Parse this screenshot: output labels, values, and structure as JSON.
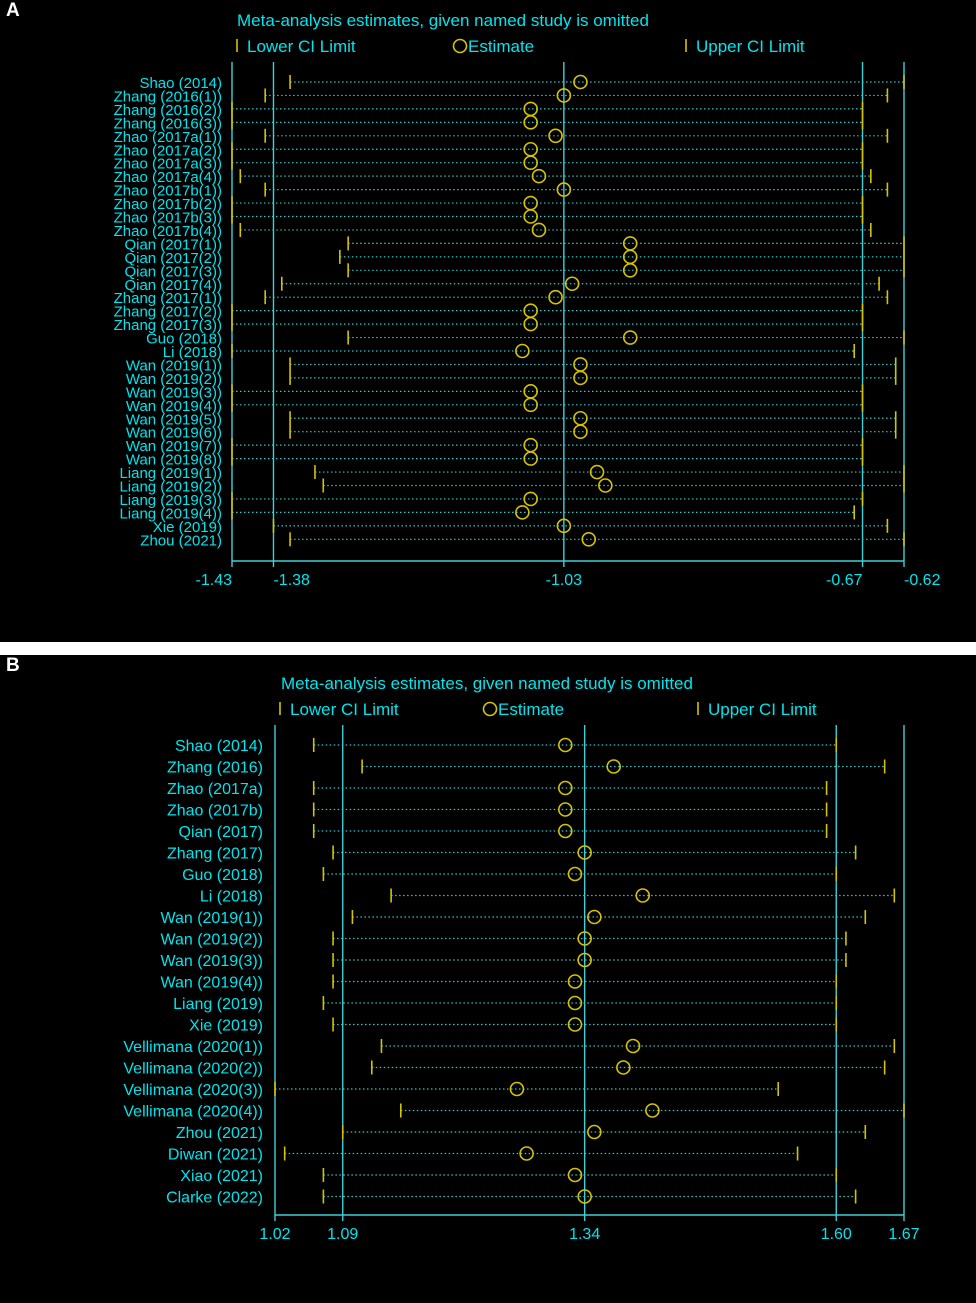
{
  "colors": {
    "background": "#000000",
    "text": "#00e5ee",
    "axis": "#3fd0d8",
    "marker": "#d4c400",
    "dots": "#30c8c8"
  },
  "chart_data": [
    {
      "type": "forest-sensitivity",
      "panel_label": "A",
      "title": "Meta-analysis estimates, given named study is omitted",
      "legend": [
        "Lower CI Limit",
        "Estimate",
        "Upper CI Limit"
      ],
      "xticks": [
        -1.43,
        -1.38,
        -1.03,
        -0.67,
        -0.62
      ],
      "xtick_labels": [
        "-1.43",
        "-1.38",
        "-1.03",
        "-0.67",
        "-0.62"
      ],
      "xlim": [
        -1.43,
        -0.62
      ],
      "vlines": [
        -1.43,
        -1.38,
        -1.03,
        -0.67,
        -0.62
      ],
      "studies": [
        {
          "name": "Shao (2014)",
          "lower": -1.36,
          "est": -1.01,
          "upper": -0.62
        },
        {
          "name": "Zhang (2016(1))",
          "lower": -1.39,
          "est": -1.03,
          "upper": -0.64
        },
        {
          "name": "Zhang (2016(2))",
          "lower": -1.43,
          "est": -1.07,
          "upper": -0.67
        },
        {
          "name": "Zhang (2016(3))",
          "lower": -1.43,
          "est": -1.07,
          "upper": -0.67
        },
        {
          "name": "Zhao (2017a(1))",
          "lower": -1.39,
          "est": -1.04,
          "upper": -0.64
        },
        {
          "name": "Zhao (2017a(2))",
          "lower": -1.43,
          "est": -1.07,
          "upper": -0.67
        },
        {
          "name": "Zhao (2017a(3))",
          "lower": -1.43,
          "est": -1.07,
          "upper": -0.67
        },
        {
          "name": "Zhao (2017a(4))",
          "lower": -1.42,
          "est": -1.06,
          "upper": -0.66
        },
        {
          "name": "Zhao (2017b(1))",
          "lower": -1.39,
          "est": -1.03,
          "upper": -0.64
        },
        {
          "name": "Zhao (2017b(2))",
          "lower": -1.43,
          "est": -1.07,
          "upper": -0.67
        },
        {
          "name": "Zhao (2017b(3))",
          "lower": -1.43,
          "est": -1.07,
          "upper": -0.67
        },
        {
          "name": "Zhao (2017b(4))",
          "lower": -1.42,
          "est": -1.06,
          "upper": -0.66
        },
        {
          "name": "Qian (2017(1))",
          "lower": -1.29,
          "est": -0.95,
          "upper": -0.62
        },
        {
          "name": "Qian (2017(2))",
          "lower": -1.3,
          "est": -0.95,
          "upper": -0.62
        },
        {
          "name": "Qian (2017(3))",
          "lower": -1.29,
          "est": -0.95,
          "upper": -0.62
        },
        {
          "name": "Qian (2017(4))",
          "lower": -1.37,
          "est": -1.02,
          "upper": -0.65
        },
        {
          "name": "Zhang (2017(1))",
          "lower": -1.39,
          "est": -1.04,
          "upper": -0.64
        },
        {
          "name": "Zhang (2017(2))",
          "lower": -1.43,
          "est": -1.07,
          "upper": -0.67
        },
        {
          "name": "Zhang (2017(3))",
          "lower": -1.43,
          "est": -1.07,
          "upper": -0.67
        },
        {
          "name": "Guo (2018)",
          "lower": -1.29,
          "est": -0.95,
          "upper": -0.62
        },
        {
          "name": "Li (2018)",
          "lower": -1.43,
          "est": -1.08,
          "upper": -0.68
        },
        {
          "name": "Wan (2019(1))",
          "lower": -1.36,
          "est": -1.01,
          "upper": -0.63
        },
        {
          "name": "Wan (2019(2))",
          "lower": -1.36,
          "est": -1.01,
          "upper": -0.63
        },
        {
          "name": "Wan (2019(3))",
          "lower": -1.43,
          "est": -1.07,
          "upper": -0.67
        },
        {
          "name": "Wan (2019(4))",
          "lower": -1.43,
          "est": -1.07,
          "upper": -0.67
        },
        {
          "name": "Wan (2019(5))",
          "lower": -1.36,
          "est": -1.01,
          "upper": -0.63
        },
        {
          "name": "Wan (2019(6))",
          "lower": -1.36,
          "est": -1.01,
          "upper": -0.63
        },
        {
          "name": "Wan (2019(7))",
          "lower": -1.43,
          "est": -1.07,
          "upper": -0.67
        },
        {
          "name": "Wan (2019(8))",
          "lower": -1.43,
          "est": -1.07,
          "upper": -0.67
        },
        {
          "name": "Liang (2019(1))",
          "lower": -1.33,
          "est": -0.99,
          "upper": -0.62
        },
        {
          "name": "Liang (2019(2))",
          "lower": -1.32,
          "est": -0.98,
          "upper": -0.62
        },
        {
          "name": "Liang (2019(3))",
          "lower": -1.43,
          "est": -1.07,
          "upper": -0.67
        },
        {
          "name": "Liang (2019(4))",
          "lower": -1.43,
          "est": -1.08,
          "upper": -0.68
        },
        {
          "name": "Xie (2019)",
          "lower": -1.38,
          "est": -1.03,
          "upper": -0.64
        },
        {
          "name": "Zhou (2021)",
          "lower": -1.36,
          "est": -1.0,
          "upper": -0.62
        }
      ]
    },
    {
      "type": "forest-sensitivity",
      "panel_label": "B",
      "title": "Meta-analysis estimates, given named study is omitted",
      "legend": [
        "Lower CI Limit",
        "Estimate",
        "Upper CI Limit"
      ],
      "xticks": [
        1.02,
        1.09,
        1.34,
        1.6,
        1.67
      ],
      "xtick_labels": [
        "1.02",
        "1.09",
        "1.34",
        "1.60",
        "1.67"
      ],
      "xlim": [
        1.02,
        1.67
      ],
      "vlines": [
        1.02,
        1.09,
        1.34,
        1.6,
        1.67
      ],
      "studies": [
        {
          "name": "Shao (2014)",
          "lower": 1.06,
          "est": 1.32,
          "upper": 1.6
        },
        {
          "name": "Zhang (2016)",
          "lower": 1.11,
          "est": 1.37,
          "upper": 1.65
        },
        {
          "name": "Zhao (2017a)",
          "lower": 1.06,
          "est": 1.32,
          "upper": 1.59
        },
        {
          "name": "Zhao (2017b)",
          "lower": 1.06,
          "est": 1.32,
          "upper": 1.59
        },
        {
          "name": "Qian (2017)",
          "lower": 1.06,
          "est": 1.32,
          "upper": 1.59
        },
        {
          "name": "Zhang (2017)",
          "lower": 1.08,
          "est": 1.34,
          "upper": 1.62
        },
        {
          "name": "Guo (2018)",
          "lower": 1.07,
          "est": 1.33,
          "upper": 1.6
        },
        {
          "name": "Li (2018)",
          "lower": 1.14,
          "est": 1.4,
          "upper": 1.66
        },
        {
          "name": "Wan (2019(1))",
          "lower": 1.1,
          "est": 1.35,
          "upper": 1.63
        },
        {
          "name": "Wan (2019(2))",
          "lower": 1.08,
          "est": 1.34,
          "upper": 1.61
        },
        {
          "name": "Wan (2019(3))",
          "lower": 1.08,
          "est": 1.34,
          "upper": 1.61
        },
        {
          "name": "Wan (2019(4))",
          "lower": 1.08,
          "est": 1.33,
          "upper": 1.6
        },
        {
          "name": "Liang (2019)",
          "lower": 1.07,
          "est": 1.33,
          "upper": 1.6
        },
        {
          "name": "Xie (2019)",
          "lower": 1.08,
          "est": 1.33,
          "upper": 1.6
        },
        {
          "name": "Vellimana (2020(1))",
          "lower": 1.13,
          "est": 1.39,
          "upper": 1.66
        },
        {
          "name": "Vellimana (2020(2))",
          "lower": 1.12,
          "est": 1.38,
          "upper": 1.65
        },
        {
          "name": "Vellimana (2020(3))",
          "lower": 1.02,
          "est": 1.27,
          "upper": 1.54
        },
        {
          "name": "Vellimana (2020(4))",
          "lower": 1.15,
          "est": 1.41,
          "upper": 1.67
        },
        {
          "name": "Zhou (2021)",
          "lower": 1.09,
          "est": 1.35,
          "upper": 1.63
        },
        {
          "name": "Diwan (2021)",
          "lower": 1.03,
          "est": 1.28,
          "upper": 1.56
        },
        {
          "name": "Xiao (2021)",
          "lower": 1.07,
          "est": 1.33,
          "upper": 1.6
        },
        {
          "name": "Clarke (2022)",
          "lower": 1.07,
          "est": 1.34,
          "upper": 1.62
        }
      ]
    }
  ]
}
